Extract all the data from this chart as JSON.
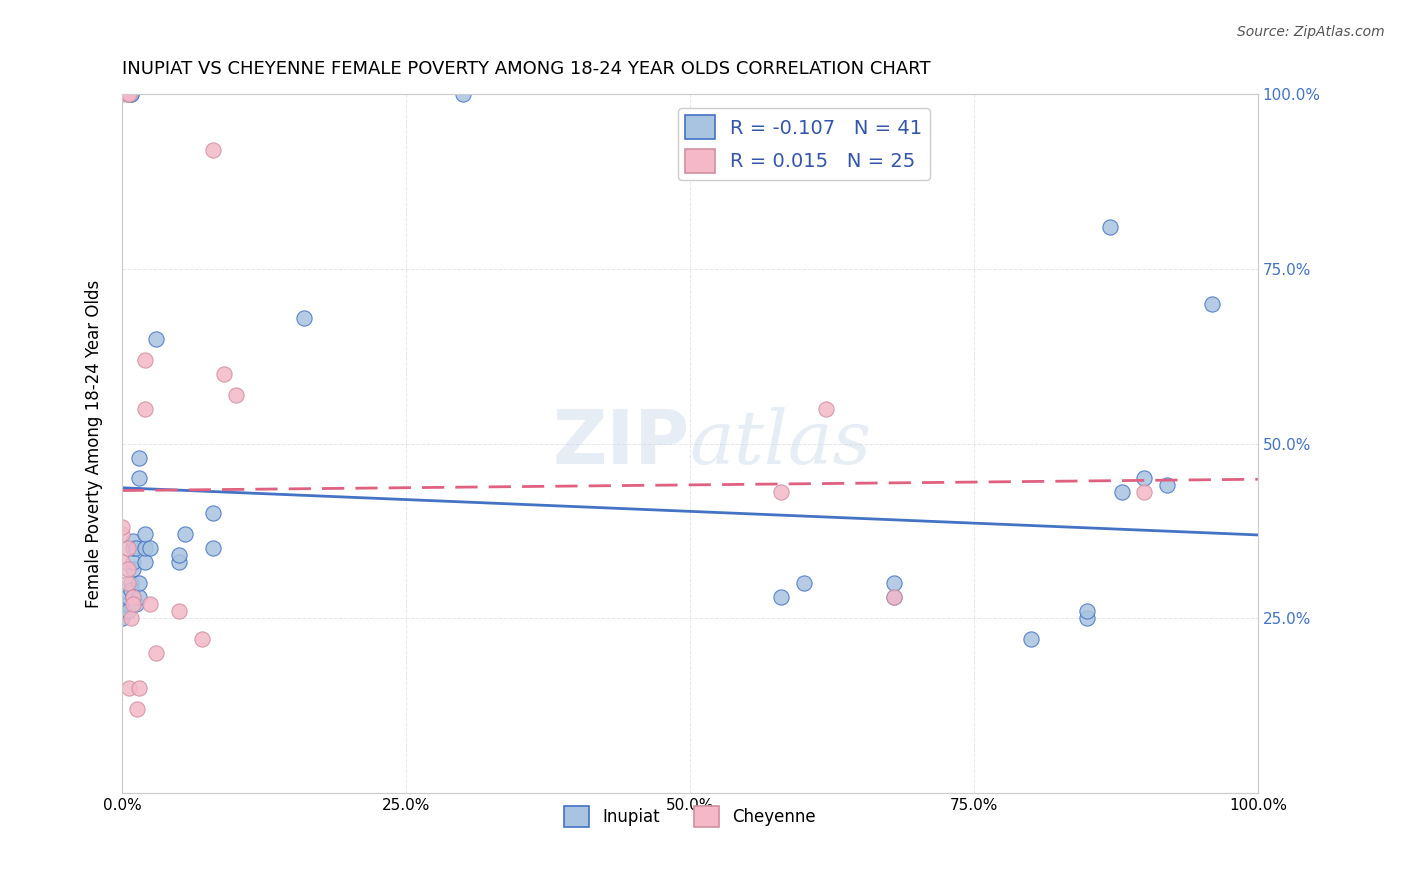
{
  "title": "INUPIAT VS CHEYENNE FEMALE POVERTY AMONG 18-24 YEAR OLDS CORRELATION CHART",
  "source": "Source: ZipAtlas.com",
  "ylabel": "Female Poverty Among 18-24 Year Olds",
  "xlim": [
    0,
    1.0
  ],
  "ylim": [
    0,
    1.0
  ],
  "xtick_labels": [
    "0.0%",
    "25.0%",
    "50.0%",
    "75.0%",
    "100.0%"
  ],
  "xtick_vals": [
    0,
    0.25,
    0.5,
    0.75,
    1.0
  ],
  "ytick_vals": [
    0.25,
    0.5,
    0.75,
    1.0
  ],
  "right_ytick_labels": [
    "25.0%",
    "50.0%",
    "75.0%",
    "100.0%"
  ],
  "watermark_zip": "ZIP",
  "watermark_atlas": "atlas",
  "inupiat_color": "#a8c4e0",
  "cheyenne_color": "#f4b8c8",
  "inupiat_line_color": "#4472c4",
  "cheyenne_line_color": "#e06080",
  "R_inupiat": -0.107,
  "N_inupiat": 41,
  "R_cheyenne": 0.015,
  "N_cheyenne": 25,
  "inupiat_x": [
    0.0,
    0.0,
    0.005,
    0.005,
    0.005,
    0.008,
    0.008,
    0.01,
    0.01,
    0.01,
    0.01,
    0.01,
    0.012,
    0.012,
    0.015,
    0.015,
    0.015,
    0.015,
    0.02,
    0.02,
    0.02,
    0.025,
    0.03,
    0.05,
    0.05,
    0.055,
    0.08,
    0.08,
    0.16,
    0.58,
    0.6,
    0.68,
    0.68,
    0.8,
    0.85,
    0.85,
    0.87,
    0.88,
    0.9,
    0.92,
    0.96,
    0.005,
    0.008,
    0.008,
    0.3
  ],
  "inupiat_y": [
    0.27,
    0.25,
    0.27,
    0.26,
    0.28,
    0.3,
    0.29,
    0.28,
    0.32,
    0.33,
    0.35,
    0.36,
    0.27,
    0.35,
    0.28,
    0.3,
    0.45,
    0.48,
    0.33,
    0.35,
    0.37,
    0.35,
    0.65,
    0.33,
    0.34,
    0.37,
    0.35,
    0.4,
    0.68,
    0.28,
    0.3,
    0.28,
    0.3,
    0.22,
    0.25,
    0.26,
    0.81,
    0.43,
    0.45,
    0.44,
    0.7,
    1.0,
    1.0,
    1.0,
    1.0
  ],
  "cheyenne_x": [
    0.0,
    0.0,
    0.0,
    0.005,
    0.005,
    0.005,
    0.006,
    0.008,
    0.01,
    0.01,
    0.013,
    0.015,
    0.02,
    0.02,
    0.025,
    0.03,
    0.05,
    0.07,
    0.08,
    0.09,
    0.1,
    0.58,
    0.62,
    0.68,
    0.9,
    0.0,
    0.005,
    0.006
  ],
  "cheyenne_y": [
    0.33,
    0.37,
    0.38,
    0.3,
    0.32,
    0.35,
    0.15,
    0.25,
    0.28,
    0.27,
    0.12,
    0.15,
    0.55,
    0.62,
    0.27,
    0.2,
    0.26,
    0.22,
    0.92,
    0.6,
    0.57,
    0.43,
    0.55,
    0.28,
    0.43,
    1.0,
    1.0,
    1.0
  ],
  "background_color": "#ffffff",
  "grid_color": "#e0e0e0"
}
